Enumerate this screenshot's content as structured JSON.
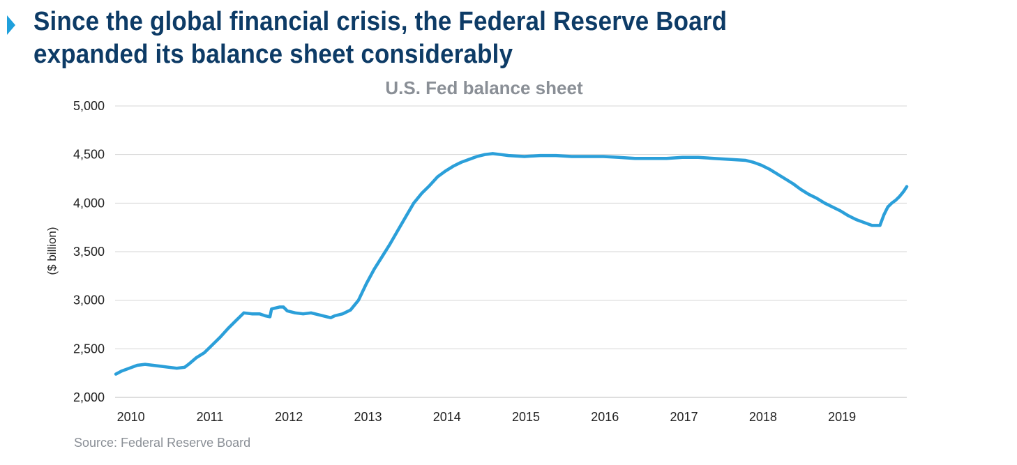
{
  "headline": "Since the global financial crisis, the Federal Reserve Board expanded its balance sheet considerably",
  "source": "Source: Federal Reserve Board",
  "colors": {
    "headline": "#0d3b66",
    "marker": "#1fa0dc",
    "line": "#2b9fd9",
    "grid": "#d4d4d4",
    "muted_text": "#8a8f96",
    "axis_text": "#222222"
  },
  "chart_data": {
    "type": "line",
    "title": "U.S. Fed balance sheet",
    "xlabel": "",
    "ylabel": "($ billion)",
    "ylim": [
      2000,
      5000
    ],
    "yticks": [
      2000,
      2500,
      3000,
      3500,
      4000,
      4500,
      5000
    ],
    "ytick_labels": [
      "2,000",
      "2,500",
      "3,000",
      "3,500",
      "4,000",
      "4,500",
      "5,000"
    ],
    "xlim": [
      2009.82,
      2019.84
    ],
    "xticks": [
      2010,
      2011,
      2012,
      2013,
      2014,
      2015,
      2016,
      2017,
      2018,
      2019
    ],
    "xtick_labels": [
      "2010",
      "2011",
      "2012",
      "2013",
      "2014",
      "2015",
      "2016",
      "2017",
      "2018",
      "2019"
    ],
    "grid": true,
    "legend": "none",
    "series": [
      {
        "x": [
          2009.83,
          2009.9,
          2010.0,
          2010.1,
          2010.2,
          2010.3,
          2010.4,
          2010.5,
          2010.6,
          2010.7,
          2010.75,
          2010.85,
          2010.95,
          2011.05,
          2011.15,
          2011.25,
          2011.35,
          2011.45,
          2011.55,
          2011.65,
          2011.72,
          2011.78,
          2011.8,
          2011.9,
          2011.95,
          2012.0,
          2012.1,
          2012.2,
          2012.3,
          2012.4,
          2012.5,
          2012.55,
          2012.6,
          2012.7,
          2012.8,
          2012.9,
          2013.0,
          2013.1,
          2013.2,
          2013.3,
          2013.4,
          2013.5,
          2013.6,
          2013.7,
          2013.8,
          2013.9,
          2014.0,
          2014.1,
          2014.2,
          2014.3,
          2014.4,
          2014.5,
          2014.6,
          2014.7,
          2014.8,
          2015.0,
          2015.2,
          2015.4,
          2015.6,
          2015.8,
          2016.0,
          2016.2,
          2016.4,
          2016.6,
          2016.8,
          2017.0,
          2017.2,
          2017.4,
          2017.6,
          2017.8,
          2017.9,
          2018.0,
          2018.1,
          2018.2,
          2018.3,
          2018.4,
          2018.5,
          2018.6,
          2018.7,
          2018.8,
          2018.9,
          2019.0,
          2019.1,
          2019.2,
          2019.3,
          2019.4,
          2019.5,
          2019.55,
          2019.6,
          2019.65,
          2019.7,
          2019.75,
          2019.8,
          2019.84
        ],
        "values": [
          2240,
          2270,
          2300,
          2330,
          2340,
          2330,
          2320,
          2310,
          2300,
          2310,
          2340,
          2410,
          2460,
          2540,
          2620,
          2710,
          2790,
          2870,
          2860,
          2860,
          2840,
          2830,
          2910,
          2930,
          2930,
          2890,
          2870,
          2860,
          2870,
          2850,
          2830,
          2820,
          2840,
          2860,
          2900,
          3000,
          3170,
          3320,
          3450,
          3580,
          3720,
          3860,
          4000,
          4100,
          4180,
          4270,
          4330,
          4380,
          4420,
          4450,
          4480,
          4500,
          4510,
          4500,
          4490,
          4480,
          4490,
          4490,
          4480,
          4480,
          4480,
          4470,
          4460,
          4460,
          4460,
          4470,
          4470,
          4460,
          4450,
          4440,
          4420,
          4390,
          4350,
          4300,
          4250,
          4200,
          4140,
          4090,
          4050,
          4000,
          3960,
          3920,
          3870,
          3830,
          3800,
          3770,
          3770,
          3880,
          3960,
          4000,
          4030,
          4070,
          4120,
          4170
        ]
      }
    ]
  }
}
